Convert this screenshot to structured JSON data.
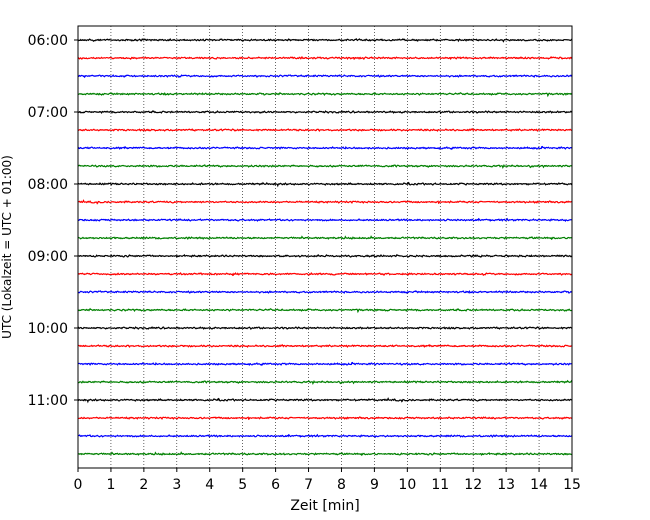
{
  "chart_data": {
    "type": "line",
    "title": "",
    "xlabel": "Zeit  [min]",
    "ylabel": "UTC (Lokalzeit = UTC + 01:00)",
    "xlim": [
      0,
      15
    ],
    "x_ticks": [
      "0",
      "1",
      "2",
      "3",
      "4",
      "5",
      "6",
      "7",
      "8",
      "9",
      "10",
      "11",
      "12",
      "13",
      "14",
      "15"
    ],
    "y_ticks": [
      "06:00",
      "07:00",
      "08:00",
      "09:00",
      "10:00",
      "11:00"
    ],
    "grid": "vertical dotted",
    "trace_interval_min": 15,
    "trace_duration_min": 15,
    "first_trace_start": "06:00",
    "color_cycle": [
      "#000000",
      "#ff0000",
      "#0000ff",
      "#008000"
    ],
    "series": [
      {
        "start": "06:00"
      },
      {
        "start": "06:15"
      },
      {
        "start": "06:30"
      },
      {
        "start": "06:45"
      },
      {
        "start": "07:00"
      },
      {
        "start": "07:15"
      },
      {
        "start": "07:30"
      },
      {
        "start": "07:45"
      },
      {
        "start": "08:00"
      },
      {
        "start": "08:15"
      },
      {
        "start": "08:30"
      },
      {
        "start": "08:45"
      },
      {
        "start": "09:00"
      },
      {
        "start": "09:15"
      },
      {
        "start": "09:30"
      },
      {
        "start": "09:45"
      },
      {
        "start": "10:00"
      },
      {
        "start": "10:15"
      },
      {
        "start": "10:30"
      },
      {
        "start": "10:45"
      },
      {
        "start": "11:00"
      },
      {
        "start": "11:15"
      },
      {
        "start": "11:30"
      },
      {
        "start": "11:45"
      }
    ]
  }
}
